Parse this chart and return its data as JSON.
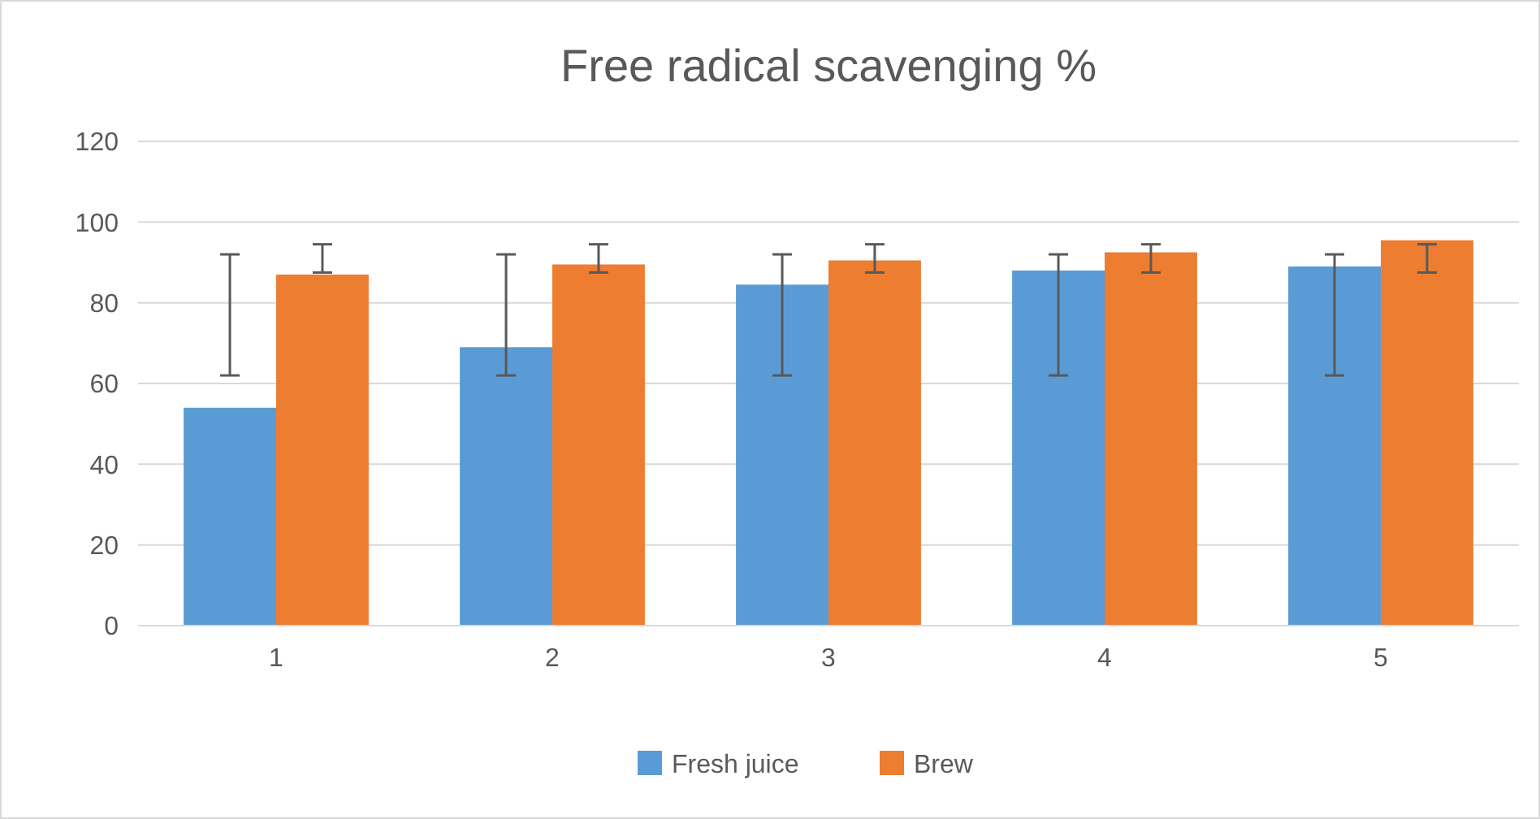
{
  "chart_data": {
    "type": "bar",
    "title": "Free radical scavenging %",
    "categories": [
      "1",
      "2",
      "3",
      "4",
      "5"
    ],
    "series": [
      {
        "name": "Fresh juice",
        "color": "#5b9bd5",
        "values": [
          54,
          69,
          84.5,
          88,
          89
        ],
        "errors": [
          [
            62,
            92
          ],
          [
            62,
            92
          ],
          [
            62,
            92
          ],
          [
            62,
            92
          ],
          [
            62,
            92
          ]
        ]
      },
      {
        "name": "Brew",
        "color": "#ed7d31",
        "values": [
          87,
          89.5,
          90.5,
          92.5,
          95.5
        ],
        "errors": [
          [
            87.5,
            94.5
          ],
          [
            87.5,
            94.5
          ],
          [
            87.5,
            94.5
          ],
          [
            87.5,
            94.5
          ],
          [
            87.5,
            94.5
          ]
        ]
      }
    ],
    "ylim": [
      0,
      120
    ],
    "yticks": [
      0,
      20,
      40,
      60,
      80,
      100,
      120
    ],
    "grid": "y",
    "legend": "bottom"
  }
}
